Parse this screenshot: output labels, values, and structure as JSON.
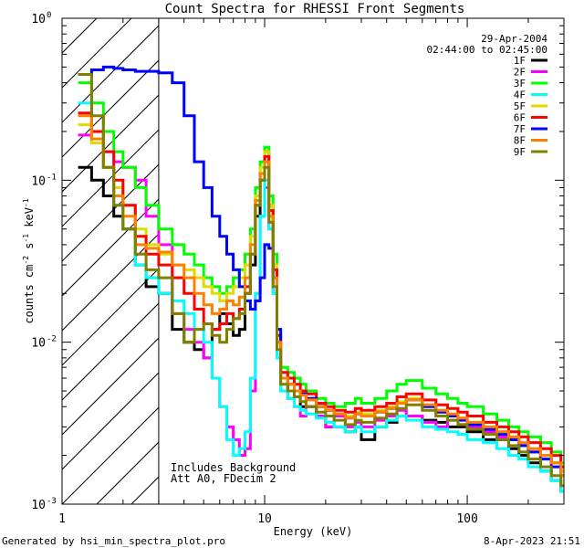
{
  "chart_data": {
    "type": "line",
    "title": "Count Spectra for RHESSI Front Segments",
    "xlabel": "Energy (keV)",
    "ylabel_main": "counts cm",
    "ylabel_exp1": "-2",
    "ylabel_mid1": " s",
    "ylabel_exp2": "-1",
    "ylabel_mid2": " keV",
    "ylabel_exp3": "-1",
    "xscale": "log",
    "yscale": "log",
    "xlim": [
      1,
      300
    ],
    "ylim": [
      0.001,
      1
    ],
    "xticks": [
      {
        "value": 1,
        "label": "1"
      },
      {
        "value": 10,
        "label": "10"
      },
      {
        "value": 100,
        "label": "100"
      }
    ],
    "yticks": [
      {
        "value": 1,
        "base": "10",
        "exp": "0"
      },
      {
        "value": 0.1,
        "base": "10",
        "exp": "-1"
      },
      {
        "value": 0.01,
        "base": "10",
        "exp": "-2"
      },
      {
        "value": 0.001,
        "base": "10",
        "exp": "-3"
      }
    ],
    "date": "29-Apr-2004",
    "time_range": "02:44:00 to 02:45:00",
    "annotation_line1": "Includes Background",
    "annotation_line2": "Att A0, FDecim 2",
    "shaded_region_max": 3,
    "legend_position": "top-right",
    "series": [
      {
        "name": "1F",
        "color": "#000000",
        "x": [
          1.2,
          1.4,
          1.6,
          1.8,
          2.0,
          2.3,
          2.6,
          3.0,
          3.5,
          4.0,
          4.5,
          5.0,
          5.5,
          6.0,
          6.5,
          7.0,
          7.5,
          8.0,
          8.5,
          9.0,
          9.5,
          10.0,
          10.5,
          11.0,
          11.5,
          12.0,
          13,
          14,
          15,
          16,
          18,
          20,
          22,
          25,
          28,
          30,
          35,
          40,
          45,
          50,
          60,
          70,
          80,
          90,
          100,
          120,
          140,
          160,
          180,
          200,
          230,
          260,
          290
        ],
        "y": [
          0.12,
          0.1,
          0.08,
          0.06,
          0.05,
          0.03,
          0.022,
          0.02,
          0.012,
          0.01,
          0.009,
          0.008,
          0.012,
          0.015,
          0.013,
          0.011,
          0.012,
          0.02,
          0.03,
          0.06,
          0.1,
          0.15,
          0.07,
          0.03,
          0.01,
          0.006,
          0.005,
          0.005,
          0.004,
          0.004,
          0.0035,
          0.003,
          0.003,
          0.0028,
          0.003,
          0.0025,
          0.003,
          0.0032,
          0.0035,
          0.0035,
          0.0033,
          0.0032,
          0.003,
          0.003,
          0.0028,
          0.0025,
          0.0025,
          0.0022,
          0.002,
          0.0018,
          0.0016,
          0.0014,
          0.0012
        ]
      },
      {
        "name": "2F",
        "color": "#ff00ff",
        "x": [
          1.2,
          1.4,
          1.6,
          1.8,
          2.0,
          2.3,
          2.6,
          3.0,
          3.5,
          4.0,
          4.5,
          5.0,
          5.5,
          6.0,
          6.5,
          7.0,
          7.5,
          8.0,
          8.5,
          9.0,
          9.5,
          10.0,
          10.5,
          11.0,
          11.5,
          12.0,
          13,
          14,
          15,
          16,
          18,
          20,
          22,
          25,
          28,
          30,
          35,
          40,
          45,
          50,
          60,
          70,
          80,
          90,
          100,
          120,
          140,
          160,
          180,
          200,
          230,
          260,
          290
        ],
        "y": [
          0.19,
          0.17,
          0.15,
          0.13,
          0.12,
          0.1,
          0.06,
          0.04,
          0.015,
          0.012,
          0.01,
          0.008,
          0.006,
          0.004,
          0.003,
          0.0025,
          0.002,
          0.0022,
          0.005,
          0.02,
          0.06,
          0.09,
          0.05,
          0.02,
          0.008,
          0.005,
          0.0045,
          0.004,
          0.0035,
          0.004,
          0.0035,
          0.003,
          0.0035,
          0.003,
          0.0032,
          0.003,
          0.0033,
          0.0035,
          0.0038,
          0.0035,
          0.0032,
          0.003,
          0.0033,
          0.0031,
          0.003,
          0.0028,
          0.0026,
          0.0025,
          0.0023,
          0.0021,
          0.002,
          0.0018,
          0.0016
        ]
      },
      {
        "name": "3F",
        "color": "#00ff00",
        "x": [
          1.2,
          1.4,
          1.6,
          1.8,
          2.0,
          2.3,
          2.6,
          3.0,
          3.5,
          4.0,
          4.5,
          5.0,
          5.5,
          6.0,
          6.5,
          7.0,
          7.5,
          8.0,
          8.5,
          9.0,
          9.5,
          10.0,
          10.5,
          11.0,
          11.5,
          12.0,
          13,
          14,
          15,
          16,
          18,
          20,
          22,
          25,
          28,
          30,
          35,
          40,
          45,
          50,
          60,
          70,
          80,
          90,
          100,
          120,
          140,
          160,
          180,
          200,
          230,
          260,
          290
        ],
        "y": [
          0.4,
          0.3,
          0.2,
          0.15,
          0.12,
          0.09,
          0.07,
          0.05,
          0.04,
          0.035,
          0.03,
          0.025,
          0.022,
          0.02,
          0.022,
          0.025,
          0.028,
          0.035,
          0.05,
          0.09,
          0.13,
          0.16,
          0.08,
          0.035,
          0.012,
          0.007,
          0.0065,
          0.006,
          0.0055,
          0.005,
          0.0045,
          0.0042,
          0.004,
          0.0042,
          0.0045,
          0.0042,
          0.0045,
          0.005,
          0.0055,
          0.0058,
          0.0052,
          0.0048,
          0.0045,
          0.0042,
          0.004,
          0.0036,
          0.0033,
          0.003,
          0.0028,
          0.0026,
          0.0024,
          0.0021,
          0.0018
        ]
      },
      {
        "name": "4F",
        "color": "#00ffff",
        "x": [
          1.2,
          1.4,
          1.6,
          1.8,
          2.0,
          2.3,
          2.6,
          3.0,
          3.5,
          4.0,
          4.5,
          5.0,
          5.5,
          6.0,
          6.5,
          7.0,
          7.5,
          8.0,
          8.5,
          9.0,
          9.5,
          10.0,
          10.5,
          11.0,
          11.5,
          12.0,
          13,
          14,
          15,
          16,
          18,
          20,
          22,
          25,
          28,
          30,
          35,
          40,
          45,
          50,
          60,
          70,
          80,
          90,
          100,
          120,
          140,
          160,
          180,
          200,
          230,
          260,
          290
        ],
        "y": [
          0.3,
          0.2,
          0.12,
          0.07,
          0.05,
          0.03,
          0.025,
          0.02,
          0.018,
          0.015,
          0.012,
          0.01,
          0.006,
          0.004,
          0.0025,
          0.002,
          0.0022,
          0.0028,
          0.006,
          0.02,
          0.06,
          0.1,
          0.05,
          0.02,
          0.008,
          0.005,
          0.0045,
          0.004,
          0.0038,
          0.0036,
          0.0034,
          0.0032,
          0.003,
          0.0028,
          0.003,
          0.0028,
          0.003,
          0.0033,
          0.0035,
          0.0033,
          0.003,
          0.0029,
          0.0028,
          0.0027,
          0.0025,
          0.0024,
          0.0022,
          0.002,
          0.0019,
          0.0017,
          0.0016,
          0.0014,
          0.0012
        ]
      },
      {
        "name": "5F",
        "color": "#dddd00",
        "x": [
          1.2,
          1.4,
          1.6,
          1.8,
          2.0,
          2.3,
          2.6,
          3.0,
          3.5,
          4.0,
          4.5,
          5.0,
          5.5,
          6.0,
          6.5,
          7.0,
          7.5,
          8.0,
          8.5,
          9.0,
          9.5,
          10.0,
          10.5,
          11.0,
          11.5,
          12.0,
          13,
          14,
          15,
          16,
          18,
          20,
          22,
          25,
          28,
          30,
          35,
          40,
          45,
          50,
          60,
          70,
          80,
          90,
          100,
          120,
          140,
          160,
          180,
          200,
          230,
          260,
          290
        ],
        "y": [
          0.22,
          0.17,
          0.12,
          0.09,
          0.07,
          0.05,
          0.04,
          0.035,
          0.03,
          0.028,
          0.025,
          0.022,
          0.02,
          0.018,
          0.02,
          0.022,
          0.025,
          0.03,
          0.045,
          0.08,
          0.12,
          0.15,
          0.07,
          0.03,
          0.011,
          0.006,
          0.0055,
          0.005,
          0.0048,
          0.0045,
          0.004,
          0.0038,
          0.0036,
          0.0035,
          0.0037,
          0.0036,
          0.0038,
          0.004,
          0.0043,
          0.0045,
          0.0041,
          0.0038,
          0.0036,
          0.0034,
          0.0032,
          0.003,
          0.0028,
          0.0026,
          0.0024,
          0.0022,
          0.002,
          0.0018,
          0.0016
        ]
      },
      {
        "name": "6F",
        "color": "#ff0000",
        "x": [
          1.2,
          1.4,
          1.6,
          1.8,
          2.0,
          2.3,
          2.6,
          3.0,
          3.5,
          4.0,
          4.5,
          5.0,
          5.5,
          6.0,
          6.5,
          7.0,
          7.5,
          8.0,
          8.5,
          9.0,
          9.5,
          10.0,
          10.5,
          11.0,
          11.5,
          12.0,
          13,
          14,
          15,
          16,
          18,
          20,
          22,
          25,
          28,
          30,
          35,
          40,
          45,
          50,
          60,
          70,
          80,
          90,
          100,
          120,
          140,
          160,
          180,
          200,
          230,
          260,
          290
        ],
        "y": [
          0.26,
          0.2,
          0.15,
          0.1,
          0.07,
          0.045,
          0.035,
          0.03,
          0.025,
          0.02,
          0.016,
          0.013,
          0.012,
          0.013,
          0.015,
          0.014,
          0.016,
          0.022,
          0.035,
          0.07,
          0.11,
          0.14,
          0.065,
          0.028,
          0.011,
          0.0065,
          0.006,
          0.0055,
          0.005,
          0.0048,
          0.0042,
          0.004,
          0.0038,
          0.0037,
          0.0039,
          0.0038,
          0.004,
          0.0042,
          0.0046,
          0.0048,
          0.0044,
          0.0041,
          0.0039,
          0.0037,
          0.0035,
          0.0032,
          0.003,
          0.0028,
          0.0026,
          0.0024,
          0.0022,
          0.002,
          0.0017
        ]
      },
      {
        "name": "7F",
        "color": "#0000ff",
        "x": [
          1.2,
          1.4,
          1.6,
          1.8,
          2.0,
          2.3,
          2.6,
          3.0,
          3.5,
          4.0,
          4.5,
          5.0,
          5.5,
          6.0,
          6.5,
          7.0,
          7.5,
          8.0,
          8.5,
          9.0,
          9.5,
          10.0,
          10.5,
          11.0,
          11.5,
          12.0,
          13,
          14,
          15,
          16,
          18,
          20,
          22,
          25,
          28,
          30,
          35,
          40,
          45,
          50,
          60,
          70,
          80,
          90,
          100,
          120,
          140,
          160,
          180,
          200,
          230,
          260,
          290
        ],
        "y": [
          0.45,
          0.48,
          0.5,
          0.49,
          0.48,
          0.47,
          0.47,
          0.46,
          0.4,
          0.25,
          0.13,
          0.09,
          0.06,
          0.045,
          0.035,
          0.028,
          0.022,
          0.018,
          0.016,
          0.018,
          0.025,
          0.04,
          0.038,
          0.025,
          0.012,
          0.006,
          0.0055,
          0.005,
          0.0048,
          0.0045,
          0.004,
          0.0038,
          0.0036,
          0.0034,
          0.0036,
          0.0035,
          0.0037,
          0.0039,
          0.0042,
          0.0044,
          0.004,
          0.0037,
          0.0035,
          0.0033,
          0.0031,
          0.0029,
          0.0027,
          0.0025,
          0.0023,
          0.0021,
          0.0019,
          0.0017,
          0.0015
        ]
      },
      {
        "name": "8F",
        "color": "#ff8000",
        "x": [
          1.2,
          1.4,
          1.6,
          1.8,
          2.0,
          2.3,
          2.6,
          3.0,
          3.5,
          4.0,
          4.5,
          5.0,
          5.5,
          6.0,
          6.5,
          7.0,
          7.5,
          8.0,
          8.5,
          9.0,
          9.5,
          10.0,
          10.5,
          11.0,
          11.5,
          12.0,
          13,
          14,
          15,
          16,
          18,
          20,
          22,
          25,
          28,
          30,
          35,
          40,
          45,
          50,
          60,
          70,
          80,
          90,
          100,
          120,
          140,
          160,
          180,
          200,
          230,
          260,
          290
        ],
        "y": [
          0.25,
          0.18,
          0.12,
          0.08,
          0.06,
          0.04,
          0.038,
          0.036,
          0.03,
          0.025,
          0.02,
          0.017,
          0.015,
          0.016,
          0.018,
          0.017,
          0.019,
          0.025,
          0.04,
          0.075,
          0.11,
          0.13,
          0.06,
          0.025,
          0.01,
          0.006,
          0.0055,
          0.005,
          0.0047,
          0.0044,
          0.004,
          0.0038,
          0.0036,
          0.0034,
          0.0036,
          0.0035,
          0.0037,
          0.0039,
          0.0042,
          0.0044,
          0.0041,
          0.0038,
          0.0036,
          0.0034,
          0.0032,
          0.003,
          0.0028,
          0.0026,
          0.0024,
          0.0022,
          0.002,
          0.0018,
          0.0015
        ]
      },
      {
        "name": "9F",
        "color": "#808000",
        "x": [
          1.2,
          1.4,
          1.6,
          1.8,
          2.0,
          2.3,
          2.6,
          3.0,
          3.5,
          4.0,
          4.5,
          5.0,
          5.5,
          6.0,
          6.5,
          7.0,
          7.5,
          8.0,
          8.5,
          9.0,
          9.5,
          10.0,
          10.5,
          11.0,
          11.5,
          12.0,
          13,
          14,
          15,
          16,
          18,
          20,
          22,
          25,
          28,
          30,
          35,
          40,
          45,
          50,
          60,
          70,
          80,
          90,
          100,
          120,
          140,
          160,
          180,
          200,
          230,
          260,
          290
        ],
        "y": [
          0.45,
          0.25,
          0.12,
          0.07,
          0.05,
          0.035,
          0.028,
          0.025,
          0.015,
          0.01,
          0.012,
          0.013,
          0.011,
          0.01,
          0.012,
          0.014,
          0.015,
          0.02,
          0.035,
          0.07,
          0.1,
          0.12,
          0.055,
          0.022,
          0.009,
          0.0055,
          0.005,
          0.0046,
          0.0043,
          0.004,
          0.0037,
          0.0035,
          0.0033,
          0.0031,
          0.0033,
          0.0032,
          0.0034,
          0.0036,
          0.0039,
          0.0041,
          0.0038,
          0.0035,
          0.0033,
          0.0031,
          0.0029,
          0.0027,
          0.0025,
          0.0023,
          0.0021,
          0.0019,
          0.0017,
          0.0015,
          0.0013
        ]
      }
    ]
  },
  "footer": {
    "generated_by": "Generated by hsi_min_spectra_plot.pro",
    "timestamp": "8-Apr-2023 21:51"
  }
}
